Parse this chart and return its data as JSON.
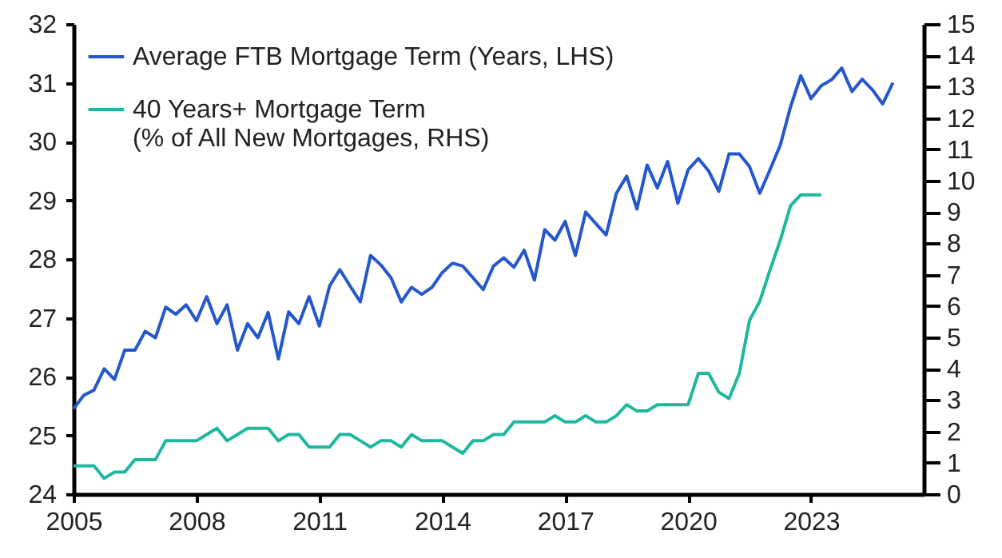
{
  "chart_data": {
    "type": "line",
    "legend": "top left",
    "xlim": [
      2005,
      2025.75
    ],
    "xticks": [
      2005,
      2008,
      2011,
      2014,
      2017,
      2020,
      2023
    ],
    "ylim": [
      24,
      32
    ],
    "yticks": [
      24,
      25,
      26,
      27,
      28,
      29,
      30,
      31,
      32
    ],
    "y2lim": [
      0,
      15
    ],
    "y2ticks": [
      0,
      1,
      2,
      3,
      4,
      5,
      6,
      7,
      8,
      9,
      10,
      11,
      12,
      13,
      14,
      15
    ],
    "series": [
      {
        "name": "Average FTB Mortgage Term (Years, LHS)",
        "color": "#2457cc",
        "x": [
          2005,
          2005.25,
          2005.5,
          2005.75,
          2006,
          2006.25,
          2006.5,
          2006.75,
          2007,
          2007.25,
          2007.5,
          2007.75,
          2008,
          2008.25,
          2008.5,
          2008.75,
          2009,
          2009.25,
          2009.5,
          2009.75,
          2010,
          2010.25,
          2010.5,
          2010.75,
          2011,
          2011.25,
          2011.5,
          2011.75,
          2012,
          2012.25,
          2012.5,
          2012.75,
          2013,
          2013.25,
          2013.5,
          2013.75,
          2014,
          2014.25,
          2014.5,
          2014.75,
          2015,
          2015.25,
          2015.5,
          2015.75,
          2016,
          2016.25,
          2016.5,
          2016.75,
          2017,
          2017.25,
          2017.5,
          2017.75,
          2018,
          2018.25,
          2018.5,
          2018.75,
          2019,
          2019.25,
          2019.5,
          2019.75,
          2020,
          2020.25,
          2020.5,
          2020.75,
          2021,
          2021.25,
          2021.5,
          2021.75,
          2022,
          2022.25,
          2022.5,
          2022.75,
          2023,
          2023.25,
          2023.5,
          2023.75,
          2024,
          2024.25,
          2024.5,
          2024.75,
          2025
        ],
        "values": [
          25.45,
          25.68,
          25.77,
          26.13,
          25.95,
          26.45,
          26.45,
          26.77,
          26.66,
          27.18,
          27.06,
          27.22,
          26.95,
          27.36,
          26.9,
          27.22,
          26.45,
          26.9,
          26.66,
          27.09,
          26.3,
          27.1,
          26.9,
          27.36,
          26.86,
          27.54,
          27.82,
          27.54,
          27.27,
          28.06,
          27.9,
          27.68,
          27.27,
          27.52,
          27.4,
          27.52,
          27.77,
          27.93,
          27.88,
          27.68,
          27.48,
          27.88,
          28.02,
          27.86,
          28.15,
          27.64,
          28.5,
          28.32,
          28.64,
          28.06,
          28.8,
          28.6,
          28.41,
          29.12,
          29.41,
          28.85,
          29.6,
          29.21,
          29.66,
          28.95,
          29.52,
          29.71,
          29.5,
          29.15,
          29.79,
          29.79,
          29.57,
          29.12,
          29.52,
          29.94,
          30.59,
          31.12,
          30.73,
          30.95,
          31.05,
          31.25,
          30.85,
          31.06,
          30.88,
          30.64,
          31.0
        ]
      },
      {
        "name": "40 Years+ Mortgage Term\n(% of All New Mortgages, RHS)",
        "color": "#1fb89f",
        "axis": "y2",
        "x": [
          2005,
          2005.25,
          2005.5,
          2005.75,
          2006,
          2006.25,
          2006.5,
          2006.75,
          2007,
          2007.25,
          2007.5,
          2007.75,
          2008,
          2008.25,
          2008.5,
          2008.75,
          2009,
          2009.25,
          2009.5,
          2009.75,
          2010,
          2010.25,
          2010.5,
          2010.75,
          2011,
          2011.25,
          2011.5,
          2011.75,
          2012,
          2012.25,
          2012.5,
          2012.75,
          2013,
          2013.25,
          2013.5,
          2013.75,
          2014,
          2014.25,
          2014.5,
          2014.75,
          2015,
          2015.25,
          2015.5,
          2015.75,
          2016,
          2016.25,
          2016.5,
          2016.75,
          2017,
          2017.25,
          2017.5,
          2017.75,
          2018,
          2018.25,
          2018.5,
          2018.75,
          2019,
          2019.25,
          2019.5,
          2019.75,
          2020,
          2020.25,
          2020.5,
          2020.75,
          2021,
          2021.25,
          2021.5,
          2021.75,
          2022,
          2022.25,
          2022.5,
          2022.75,
          2023,
          2023.25
        ],
        "values": [
          0.9,
          0.9,
          0.9,
          0.5,
          0.7,
          0.7,
          1.1,
          1.1,
          1.1,
          1.7,
          1.7,
          1.7,
          1.7,
          1.9,
          2.1,
          1.7,
          1.9,
          2.1,
          2.1,
          2.1,
          1.7,
          1.9,
          1.9,
          1.5,
          1.5,
          1.5,
          1.9,
          1.9,
          1.7,
          1.5,
          1.7,
          1.7,
          1.5,
          1.9,
          1.7,
          1.7,
          1.7,
          1.5,
          1.3,
          1.7,
          1.7,
          1.9,
          1.9,
          2.3,
          2.3,
          2.3,
          2.3,
          2.5,
          2.3,
          2.3,
          2.5,
          2.3,
          2.3,
          2.5,
          2.85,
          2.65,
          2.65,
          2.85,
          2.85,
          2.85,
          2.85,
          3.85,
          3.85,
          3.25,
          3.05,
          3.85,
          5.55,
          6.15,
          7.15,
          8.1,
          9.2,
          9.55,
          9.55,
          9.55
        ]
      }
    ]
  }
}
